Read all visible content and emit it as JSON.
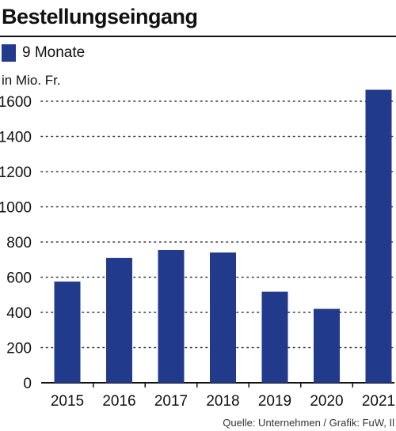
{
  "chart_data": {
    "type": "bar",
    "title": "Bestellungseingang",
    "unit_label": "in Mio. Fr.",
    "categories": [
      "2015",
      "2016",
      "2017",
      "2018",
      "2019",
      "2020",
      "2021"
    ],
    "series": [
      {
        "name": "9 Monate",
        "values": [
          575,
          710,
          755,
          740,
          518,
          420,
          1665
        ],
        "color": "#223a8c"
      }
    ],
    "ylim": [
      0,
      1600
    ],
    "yticks": [
      0,
      200,
      400,
      600,
      800,
      1000,
      1200,
      1400,
      1600
    ],
    "grid": "dotted-horizontal",
    "legend_position": "top-left",
    "source": "Quelle: Unternehmen / Grafik: FuW, Il"
  }
}
